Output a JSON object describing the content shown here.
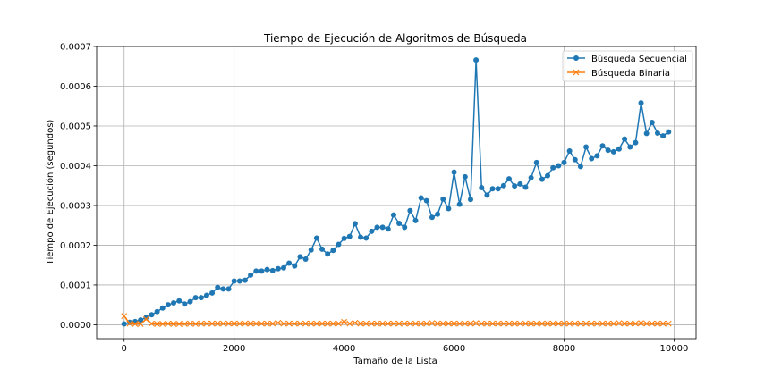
{
  "chart_data": {
    "type": "line",
    "title": "Tiempo de Ejecución de Algoritmos de Búsqueda",
    "xlabel": "Tamaño de la Lista",
    "ylabel": "Tiempo de Ejecución (segundos)",
    "xlim": [
      -500,
      10400
    ],
    "ylim": [
      -3.5e-05,
      0.0007
    ],
    "xticks": [
      0,
      2000,
      4000,
      6000,
      8000,
      10000
    ],
    "xtick_labels": [
      "0",
      "2000",
      "4000",
      "6000",
      "8000",
      "10000"
    ],
    "yticks": [
      0,
      0.0001,
      0.0002,
      0.0003,
      0.0004,
      0.0005,
      0.0006,
      0.0007
    ],
    "ytick_labels": [
      "0.0000",
      "0.0001",
      "0.0002",
      "0.0003",
      "0.0004",
      "0.0005",
      "0.0006",
      "0.0007"
    ],
    "grid": true,
    "legend_position": "top-right",
    "x": [
      0,
      100,
      200,
      300,
      400,
      500,
      600,
      700,
      800,
      900,
      1000,
      1100,
      1200,
      1300,
      1400,
      1500,
      1600,
      1700,
      1800,
      1900,
      2000,
      2100,
      2200,
      2300,
      2400,
      2500,
      2600,
      2700,
      2800,
      2900,
      3000,
      3100,
      3200,
      3300,
      3400,
      3500,
      3600,
      3700,
      3800,
      3900,
      4000,
      4100,
      4200,
      4300,
      4400,
      4500,
      4600,
      4700,
      4800,
      4900,
      5000,
      5100,
      5200,
      5300,
      5400,
      5500,
      5600,
      5700,
      5800,
      5900,
      6000,
      6100,
      6200,
      6300,
      6400,
      6500,
      6600,
      6700,
      6800,
      6900,
      7000,
      7100,
      7200,
      7300,
      7400,
      7500,
      7600,
      7700,
      7800,
      7900,
      8000,
      8100,
      8200,
      8300,
      8400,
      8500,
      8600,
      8700,
      8800,
      8900,
      9000,
      9100,
      9200,
      9300,
      9400,
      9500,
      9600,
      9700,
      9800,
      9900
    ],
    "series": [
      {
        "name": "Búsqueda Secuencial",
        "color": "#1f77b4",
        "marker": "circle",
        "values": [
          2e-06,
          6e-06,
          8e-06,
          1.2e-05,
          1.8e-05,
          2.5e-05,
          3.3e-05,
          4.2e-05,
          5e-05,
          5.5e-05,
          6e-05,
          5.2e-05,
          5.8e-05,
          6.8e-05,
          6.8e-05,
          7.4e-05,
          8e-05,
          9.4e-05,
          9e-05,
          9e-05,
          0.00011,
          0.00011,
          0.000112,
          0.000125,
          0.000135,
          0.000135,
          0.000139,
          0.000136,
          0.000141,
          0.000143,
          0.000155,
          0.000148,
          0.000171,
          0.000165,
          0.000188,
          0.000218,
          0.00019,
          0.000178,
          0.000187,
          0.000202,
          0.000217,
          0.000222,
          0.000254,
          0.00022,
          0.000218,
          0.000235,
          0.000245,
          0.000245,
          0.000241,
          0.000276,
          0.000255,
          0.000245,
          0.000287,
          0.000262,
          0.000319,
          0.000312,
          0.00027,
          0.000278,
          0.000316,
          0.000292,
          0.000384,
          0.000303,
          0.000372,
          0.000315,
          0.000666,
          0.000345,
          0.000326,
          0.000342,
          0.000342,
          0.00035,
          0.000367,
          0.000349,
          0.000354,
          0.000346,
          0.00037,
          0.000408,
          0.000366,
          0.000375,
          0.000395,
          0.0004,
          0.000408,
          0.000437,
          0.000415,
          0.000398,
          0.000447,
          0.000418,
          0.000425,
          0.00045,
          0.000439,
          0.000435,
          0.000442,
          0.000467,
          0.000447,
          0.000458,
          0.000558,
          0.000481,
          0.000509,
          0.000482,
          0.000475,
          0.000485
        ]
      },
      {
        "name": "Búsqueda Binaria",
        "color": "#ff7f0e",
        "marker": "x",
        "values": [
          2.2e-05,
          3e-06,
          2e-06,
          2e-06,
          1.4e-05,
          3e-06,
          2e-06,
          2e-06,
          3e-06,
          2e-06,
          2e-06,
          2e-06,
          3e-06,
          2e-06,
          3e-06,
          3e-06,
          3e-06,
          3e-06,
          3e-06,
          3e-06,
          3e-06,
          3e-06,
          3e-06,
          3e-06,
          3e-06,
          3e-06,
          3e-06,
          3e-06,
          5e-06,
          3e-06,
          3e-06,
          3e-06,
          3e-06,
          3e-06,
          3e-06,
          3e-06,
          3e-06,
          3e-06,
          3e-06,
          3e-06,
          7e-06,
          3e-06,
          5e-06,
          3e-06,
          3e-06,
          3e-06,
          3e-06,
          3e-06,
          3e-06,
          3e-06,
          3e-06,
          3e-06,
          3e-06,
          3e-06,
          3e-06,
          3e-06,
          4e-06,
          3e-06,
          3e-06,
          3e-06,
          3e-06,
          3e-06,
          3e-06,
          3e-06,
          4e-06,
          3e-06,
          3e-06,
          3e-06,
          3e-06,
          3e-06,
          3e-06,
          3e-06,
          3e-06,
          3e-06,
          3e-06,
          3e-06,
          3e-06,
          3e-06,
          3e-06,
          3e-06,
          3e-06,
          3e-06,
          3e-06,
          3e-06,
          3e-06,
          3e-06,
          3e-06,
          3e-06,
          3e-06,
          3e-06,
          4e-06,
          3e-06,
          3e-06,
          3e-06,
          4e-06,
          3e-06,
          3e-06,
          3e-06,
          3e-06,
          3e-06
        ]
      }
    ]
  }
}
